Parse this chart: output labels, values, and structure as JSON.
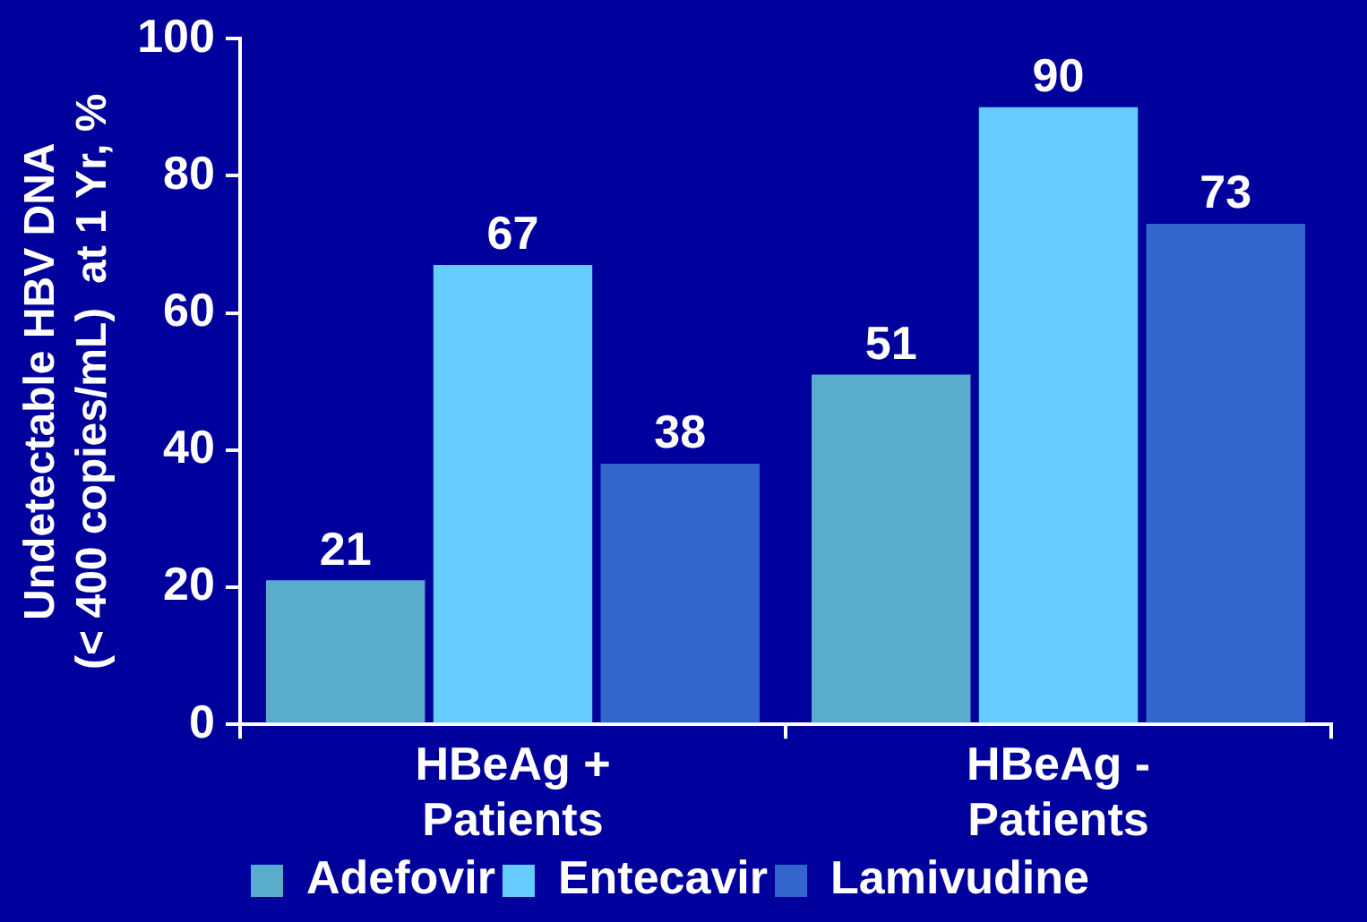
{
  "chart_data": {
    "type": "bar",
    "ylabel": "Undetectable HBV DNA\n(< 400 copies/mL)  at 1 Yr, %",
    "categories": [
      "HBeAg +\nPatients",
      "HBeAg -\nPatients"
    ],
    "series": [
      {
        "name": "Adefovir",
        "color": "#5aaccc",
        "values": [
          21,
          51
        ]
      },
      {
        "name": "Entecavir",
        "color": "#66ccff",
        "values": [
          67,
          90
        ]
      },
      {
        "name": "Lamivudine",
        "color": "#3366cc",
        "values": [
          38,
          73
        ]
      }
    ],
    "ylim": [
      0,
      100
    ],
    "yticks": [
      0,
      20,
      40,
      60,
      80,
      100
    ],
    "grid": false,
    "legend": "bottom",
    "data_labels": true
  }
}
